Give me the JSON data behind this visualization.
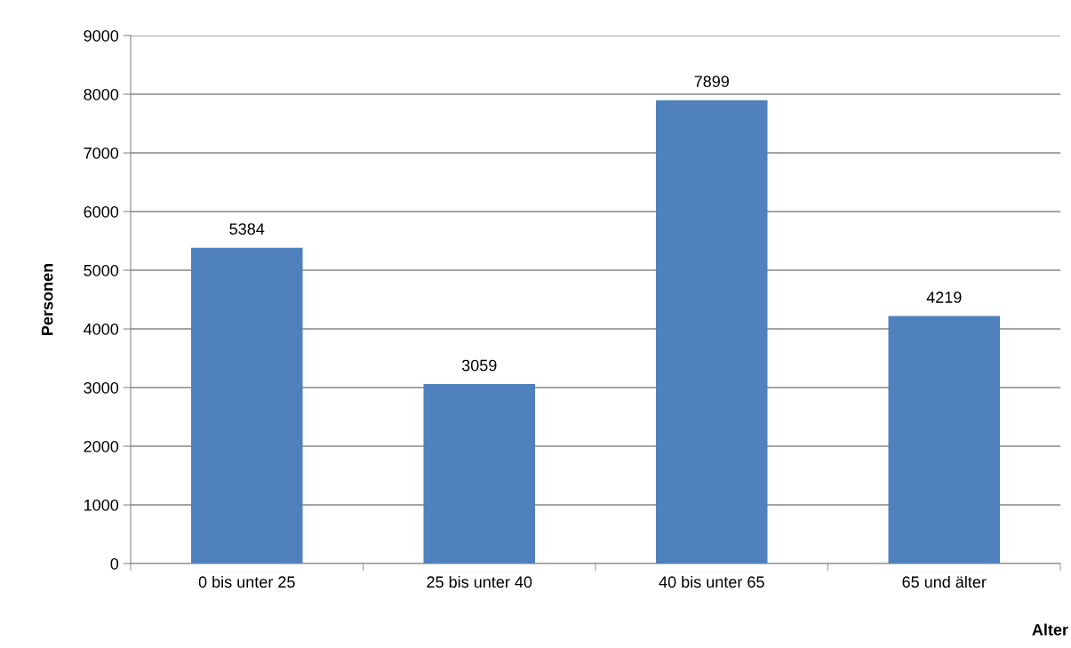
{
  "chart_data": {
    "type": "bar",
    "xlabel": "Alter",
    "ylabel": "Personen",
    "categories": [
      "0 bis unter 25",
      "25 bis unter 40",
      "40 bis unter 65",
      "65 und älter"
    ],
    "values": [
      5384,
      3059,
      7899,
      4219
    ],
    "color": "#4f81bd",
    "ylim": [
      0,
      9000
    ],
    "yticks": [
      0,
      1000,
      2000,
      3000,
      4000,
      5000,
      6000,
      7000,
      8000,
      9000
    ],
    "grid": "y",
    "data_labels": true
  }
}
